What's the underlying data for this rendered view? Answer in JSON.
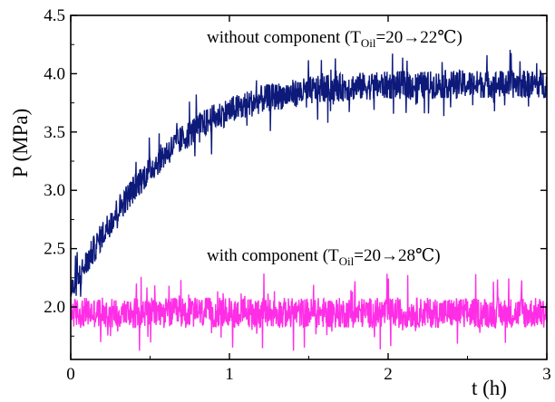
{
  "chart_data": {
    "type": "line",
    "title": "",
    "xlabel": "t (h)",
    "ylabel": "P (MPa)",
    "xlim": [
      0,
      3
    ],
    "ylim": [
      1.55,
      4.5
    ],
    "xticks": [
      "0",
      "1",
      "2",
      "3"
    ],
    "yticks": [
      "2.0",
      "2.5",
      "3.0",
      "3.5",
      "4.0",
      "4.5"
    ],
    "grid": false,
    "series": [
      {
        "name": "without component",
        "color": "#0d1a7a",
        "x": [
          0.0,
          0.05,
          0.1,
          0.2,
          0.3,
          0.4,
          0.5,
          0.6,
          0.7,
          0.8,
          0.9,
          1.0,
          1.2,
          1.4,
          1.6,
          1.8,
          2.0,
          2.2,
          2.4,
          2.6,
          2.8,
          3.0
        ],
        "y": [
          2.12,
          2.25,
          2.38,
          2.62,
          2.84,
          3.02,
          3.18,
          3.32,
          3.44,
          3.54,
          3.62,
          3.68,
          3.78,
          3.83,
          3.87,
          3.89,
          3.9,
          3.9,
          3.91,
          3.91,
          3.91,
          3.91
        ],
        "noise_amplitude": 0.12
      },
      {
        "name": "with component",
        "color": "#ff2ee6",
        "x": [
          0.0,
          0.5,
          1.0,
          1.5,
          2.0,
          2.5,
          3.0
        ],
        "y": [
          1.95,
          1.95,
          1.95,
          1.95,
          1.95,
          1.95,
          1.95
        ],
        "noise_amplitude": 0.13
      }
    ],
    "annotations": [
      {
        "text": "without  component (T",
        "sub": "Oil",
        "rest": "=20→22℃)"
      },
      {
        "text": "with component (T",
        "sub": "Oil",
        "rest": "=20→28℃)"
      }
    ]
  }
}
